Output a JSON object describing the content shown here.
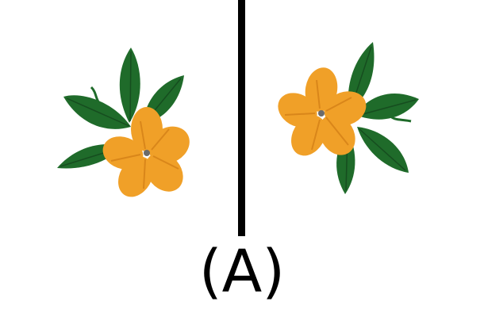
{
  "caption": "(A)",
  "colors": {
    "background": "#ffffff",
    "divider": "#000000",
    "leaf": "#1f6b2a",
    "leaf_vein": "#164d1f",
    "petal": "#f0a028",
    "petal_shade": "#d9861a",
    "center": "#6b6b6b"
  },
  "panels": [
    {
      "subject": "orange-flower-with-leaves",
      "orientation": "original"
    },
    {
      "subject": "orange-flower-with-leaves",
      "orientation": "rotated"
    }
  ]
}
